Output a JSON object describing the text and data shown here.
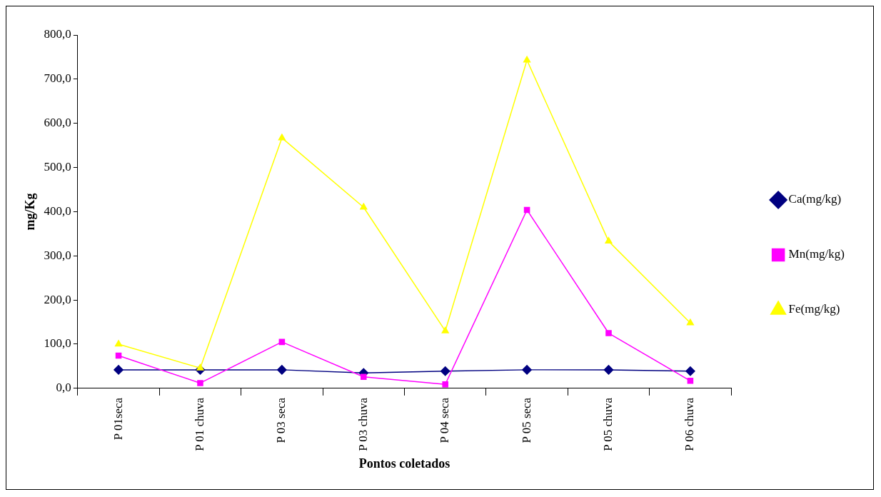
{
  "chart_data": {
    "type": "line",
    "xlabel": "Pontos coletados",
    "ylabel": "mg/Kg",
    "categories": [
      "P 01seca",
      "P 01 chuva",
      "P 03 seca",
      "P 03 chuva",
      "P 04 seca",
      "P 05 seca",
      "P 05 chuva",
      "P 06 chuva"
    ],
    "series": [
      {
        "name": "Ca(mg/kg)",
        "color": "#000080",
        "marker": "diamond",
        "values": [
          42,
          42,
          42,
          35,
          39,
          42,
          42,
          39
        ]
      },
      {
        "name": "Mn(mg/kg)",
        "color": "#ff00ff",
        "marker": "square",
        "values": [
          74,
          12,
          105,
          26,
          9,
          404,
          125,
          17
        ]
      },
      {
        "name": "Fe(mg/kg)",
        "color": "#ffff00",
        "marker": "triangle",
        "values": [
          100,
          46,
          567,
          410,
          130,
          743,
          333,
          148
        ]
      }
    ],
    "ylim": [
      0,
      800
    ],
    "yticks": [
      {
        "value": 0,
        "label": "0,0"
      },
      {
        "value": 100,
        "label": "100,0"
      },
      {
        "value": 200,
        "label": "200,0"
      },
      {
        "value": 300,
        "label": "300,0"
      },
      {
        "value": 400,
        "label": "400,0"
      },
      {
        "value": 500,
        "label": "500,0"
      },
      {
        "value": 600,
        "label": "600,0"
      },
      {
        "value": 700,
        "label": "700,0"
      },
      {
        "value": 800,
        "label": "800,0"
      }
    ],
    "grid": false,
    "legend": "right",
    "line_style": "solid"
  }
}
